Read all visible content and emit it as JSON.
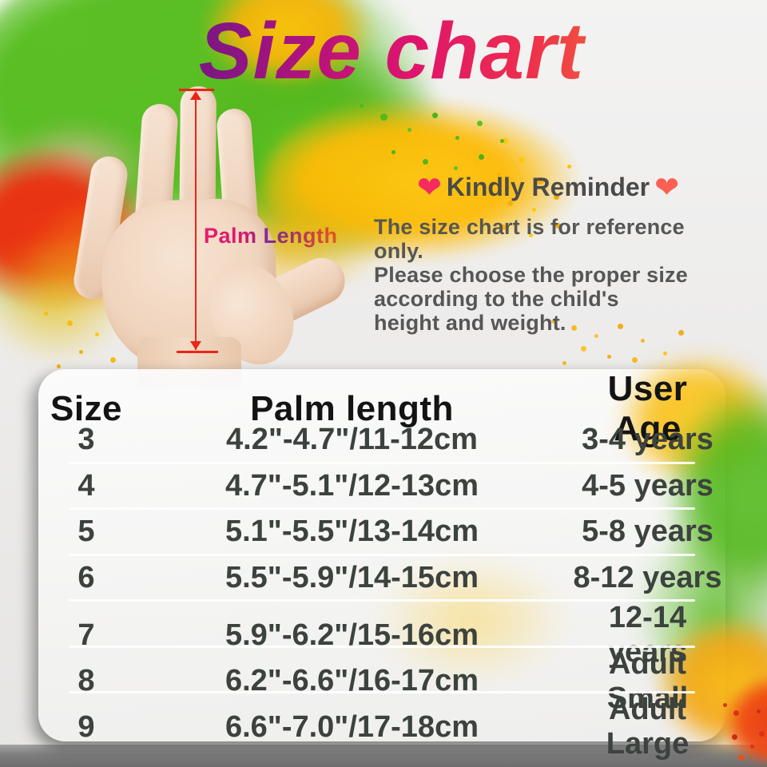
{
  "page": {
    "title": "Size chart"
  },
  "hand_figure": {
    "measure_label": "Palm Length"
  },
  "reminder": {
    "heart_left": "❤",
    "heart_right": "❤",
    "heading": "Kindly Reminder",
    "body_lines": [
      "The size chart is for reference only.",
      "Please choose the proper size",
      "according to the child's",
      "height and weight."
    ]
  },
  "chart_data": {
    "type": "table",
    "title": "Size chart",
    "columns": [
      "Size",
      "Palm length",
      "User Age"
    ],
    "rows": [
      [
        "3",
        "4.2\"-4.7\"/11-12cm",
        "3-4 years"
      ],
      [
        "4",
        "4.7\"-5.1\"/12-13cm",
        "4-5 years"
      ],
      [
        "5",
        "5.1\"-5.5\"/13-14cm",
        "5-8 years"
      ],
      [
        "6",
        "5.5\"-5.9\"/14-15cm",
        "8-12 years"
      ],
      [
        "7",
        "5.9\"-6.2\"/15-16cm",
        "12-14 years"
      ],
      [
        "8",
        "6.2\"-6.6\"/16-17cm",
        "Adult Small"
      ],
      [
        "9",
        "6.6\"-7.0\"/17-18cm",
        "Adult Large"
      ]
    ]
  },
  "palette": {
    "title_gradient_start": "#5c1684",
    "title_gradient_mid": "#e0156b",
    "title_gradient_end": "#f46a38",
    "splatter_green": "#56bd1f",
    "splatter_yellow": "#ffc30c",
    "splatter_orange": "#f57e15",
    "splatter_red": "#e93413",
    "heart_pink": "#f32b5f",
    "heart_coral": "#fb6054",
    "measure_arrow_red": "#ea2418",
    "header_text": "#141414",
    "table_text": "#3c423e"
  }
}
